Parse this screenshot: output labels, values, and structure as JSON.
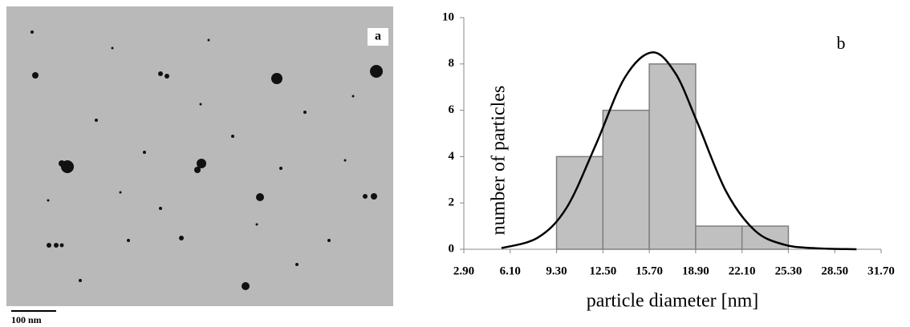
{
  "image_panel": {
    "label": "a",
    "scale_bar": "100 nm"
  },
  "chart_data": {
    "type": "histogram",
    "annotation": "b",
    "x_label": "particle diameter [nm]",
    "y_label": "number of particles",
    "bins": [
      9.3,
      12.5,
      15.7,
      18.9,
      22.1,
      25.3
    ],
    "counts": [
      4,
      6,
      8,
      1,
      1
    ],
    "color": "#c0c0c0",
    "fit": {
      "x": [
        5.5,
        8,
        10,
        12,
        14,
        15.9,
        17.5,
        19,
        21,
        23,
        25,
        27,
        30
      ],
      "y": [
        0.05,
        0.5,
        1.8,
        4.5,
        7.4,
        8.5,
        7.6,
        5.5,
        2.5,
        0.8,
        0.2,
        0.05,
        0
      ],
      "color": "#000000"
    },
    "xlim": [
      2.9,
      31.7
    ],
    "xticks": [
      {
        "value": 2.9,
        "label": "2.90"
      },
      {
        "value": 6.1,
        "label": "6.10"
      },
      {
        "value": 9.3,
        "label": "9.30"
      },
      {
        "value": 12.5,
        "label": "12.50"
      },
      {
        "value": 15.7,
        "label": "15.70"
      },
      {
        "value": 18.9,
        "label": "18.90"
      },
      {
        "value": 22.1,
        "label": "22.10"
      },
      {
        "value": 25.3,
        "label": "25.30"
      },
      {
        "value": 28.5,
        "label": "28.50"
      },
      {
        "value": 31.7,
        "label": "31.70"
      }
    ],
    "ylim": [
      0,
      10
    ],
    "yticks": [
      0,
      2,
      4,
      6,
      8,
      10
    ],
    "grid": false
  }
}
